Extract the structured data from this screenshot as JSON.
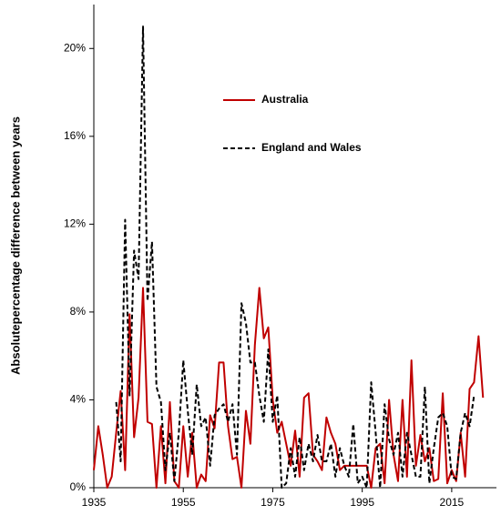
{
  "chart_data": {
    "type": "line",
    "y_label": "Absolutepercentage difference between years",
    "x": [
      1935,
      1936,
      1937,
      1938,
      1939,
      1940,
      1941,
      1942,
      1943,
      1944,
      1945,
      1946,
      1947,
      1948,
      1949,
      1950,
      1951,
      1952,
      1953,
      1954,
      1955,
      1956,
      1957,
      1958,
      1959,
      1960,
      1961,
      1962,
      1963,
      1964,
      1965,
      1966,
      1967,
      1968,
      1969,
      1970,
      1971,
      1972,
      1973,
      1974,
      1975,
      1976,
      1977,
      1978,
      1979,
      1980,
      1981,
      1982,
      1983,
      1984,
      1985,
      1986,
      1987,
      1988,
      1989,
      1990,
      1991,
      1992,
      1993,
      1994,
      1995,
      1996,
      1997,
      1998,
      1999,
      2000,
      2001,
      2002,
      2003,
      2004,
      2005,
      2006,
      2007,
      2008,
      2009,
      2010,
      2011,
      2012,
      2013,
      2014,
      2015,
      2016,
      2017,
      2018,
      2019,
      2020,
      2021,
      2022
    ],
    "series": [
      {
        "name": "Australia",
        "color": "#c00000",
        "dashed": false,
        "values": [
          0.8,
          2.8,
          1.5,
          0,
          0.5,
          2.5,
          4.4,
          0.8,
          7.9,
          2.3,
          4.1,
          9.1,
          3,
          2.9,
          0,
          2.8,
          0.2,
          3.9,
          0.3,
          0,
          2.8,
          0.5,
          2.5,
          0,
          0.6,
          0.3,
          3.3,
          2.7,
          5.7,
          5.7,
          2.8,
          1.3,
          1.4,
          0,
          3.5,
          2,
          6.5,
          9.1,
          6.8,
          7.3,
          4,
          2.5,
          3,
          2,
          1,
          2.6,
          0.5,
          4.1,
          4.3,
          1.5,
          1.2,
          0.8,
          3.2,
          2.5,
          2,
          0.8,
          1,
          1,
          1,
          1,
          1,
          1,
          0,
          1.8,
          2,
          0.2,
          4,
          1.5,
          0.3,
          4,
          0.5,
          5.8,
          1,
          2.4,
          1.2,
          1.8,
          0.3,
          0.4,
          4.3,
          0.2,
          0.8,
          0.3,
          2.5,
          0.5,
          4.5,
          4.8,
          6.9,
          4.1
        ]
      },
      {
        "name": "England and Wales",
        "color": "#000000",
        "dashed": true,
        "values": [
          null,
          null,
          null,
          null,
          null,
          3.9,
          1.2,
          12.2,
          4.2,
          10.8,
          9.5,
          21,
          8.5,
          11.2,
          4.6,
          3.9,
          0.8,
          2.5,
          0.3,
          2.5,
          5.8,
          3.5,
          1.5,
          4.7,
          2.8,
          3.2,
          1,
          3.3,
          3.6,
          3.8,
          3,
          3.8,
          1.5,
          8.4,
          7.5,
          5.7,
          5.7,
          4.2,
          3,
          6.3,
          3,
          4.2,
          0,
          0.2,
          1.8,
          0.5,
          2.3,
          0.8,
          2,
          1.2,
          2.4,
          1.2,
          1.2,
          2,
          0.5,
          1.8,
          1,
          0.5,
          2.9,
          0.2,
          0.5,
          0,
          4.8,
          2.5,
          0,
          3.8,
          2.2,
          1.5,
          2.5,
          0.5,
          2.5,
          1.5,
          0.5,
          0.5,
          4.6,
          0.2,
          1.8,
          3.2,
          3.4,
          2.8,
          0.5,
          0.4,
          2.5,
          3.4,
          2.8,
          4.2,
          null,
          null
        ]
      }
    ],
    "xlim": [
      1935,
      2025
    ],
    "xticks": [
      1935,
      1955,
      1975,
      1995,
      2015
    ],
    "ylim": [
      0,
      22
    ],
    "yticks": [
      {
        "value": 0,
        "label": "0%"
      },
      {
        "value": 4,
        "label": "4%"
      },
      {
        "value": 8,
        "label": "8%"
      },
      {
        "value": 12,
        "label": "12%"
      },
      {
        "value": 16,
        "label": "16%"
      },
      {
        "value": 20,
        "label": "20%"
      }
    ],
    "grid": false
  }
}
